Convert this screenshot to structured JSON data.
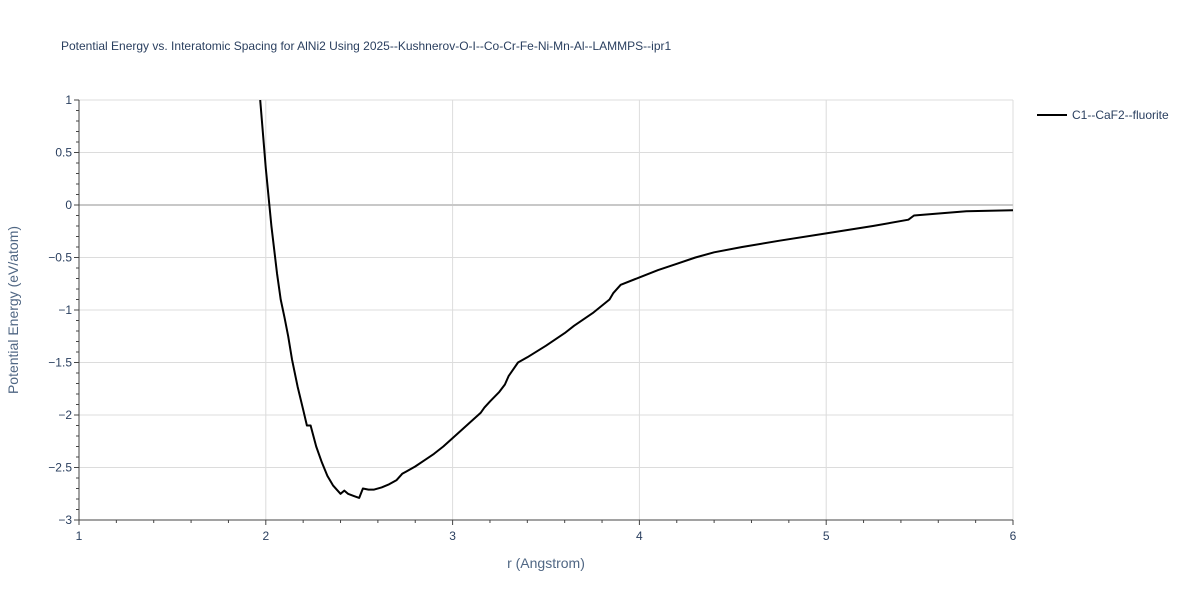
{
  "chart_data": {
    "type": "line",
    "title": "Potential Energy vs. Interatomic Spacing for AlNi2 Using 2025--Kushnerov-O-I--Co-Cr-Fe-Ni-Mn-Al--LAMMPS--ipr1",
    "xlabel": "r (Angstrom)",
    "ylabel": "Potential Energy (eV/atom)",
    "xlim": [
      1,
      6
    ],
    "ylim": [
      -3,
      1
    ],
    "xticks": [
      1,
      2,
      3,
      4,
      5,
      6
    ],
    "xtick_labels": [
      "1",
      "2",
      "3",
      "4",
      "5",
      "6"
    ],
    "yticks": [
      1,
      0.5,
      0,
      -0.5,
      -1,
      -1.5,
      -2,
      -2.5,
      -3
    ],
    "ytick_labels": [
      "1",
      "0.5",
      "0",
      "−0.5",
      "−1",
      "−1.5",
      "−2",
      "−2.5",
      "−3"
    ],
    "grid": true,
    "legend_position": "top-right, outside plot",
    "series": [
      {
        "name": "C1--CaF2--fluorite",
        "color": "#000000",
        "x": [
          1.97,
          2.0,
          2.03,
          2.06,
          2.08,
          2.1,
          2.12,
          2.14,
          2.17,
          2.2,
          2.22,
          2.24,
          2.27,
          2.3,
          2.33,
          2.36,
          2.4,
          2.42,
          2.44,
          2.47,
          2.5,
          2.52,
          2.55,
          2.58,
          2.62,
          2.66,
          2.7,
          2.73,
          2.75,
          2.8,
          2.85,
          2.9,
          2.95,
          3.0,
          3.05,
          3.1,
          3.15,
          3.17,
          3.2,
          3.25,
          3.28,
          3.3,
          3.35,
          3.4,
          3.5,
          3.6,
          3.65,
          3.75,
          3.84,
          3.86,
          3.9,
          4.0,
          4.1,
          4.2,
          4.3,
          4.4,
          4.55,
          4.75,
          5.0,
          5.25,
          5.44,
          5.47,
          5.75,
          6.0
        ],
        "y": [
          1.0,
          0.35,
          -0.2,
          -0.65,
          -0.9,
          -1.07,
          -1.25,
          -1.47,
          -1.73,
          -1.95,
          -2.1,
          -2.1,
          -2.3,
          -2.45,
          -2.58,
          -2.67,
          -2.75,
          -2.72,
          -2.75,
          -2.77,
          -2.79,
          -2.7,
          -2.71,
          -2.71,
          -2.69,
          -2.66,
          -2.62,
          -2.56,
          -2.54,
          -2.49,
          -2.43,
          -2.37,
          -2.3,
          -2.22,
          -2.14,
          -2.06,
          -1.98,
          -1.93,
          -1.87,
          -1.78,
          -1.71,
          -1.63,
          -1.5,
          -1.45,
          -1.34,
          -1.22,
          -1.15,
          -1.03,
          -0.9,
          -0.84,
          -0.76,
          -0.69,
          -0.62,
          -0.56,
          -0.5,
          -0.45,
          -0.4,
          -0.34,
          -0.27,
          -0.2,
          -0.14,
          -0.1,
          -0.06,
          -0.05
        ]
      }
    ]
  }
}
